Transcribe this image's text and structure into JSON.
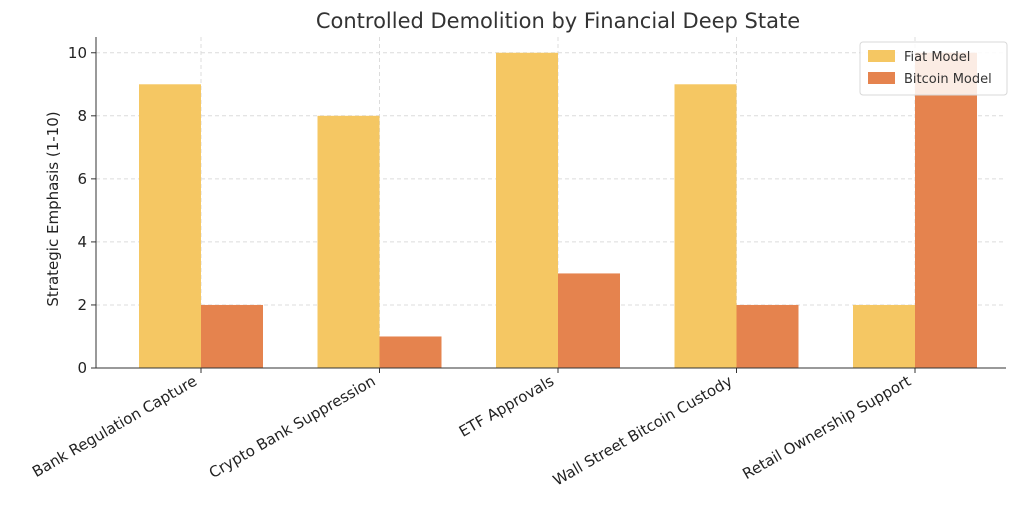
{
  "chart_data": {
    "type": "bar",
    "title": "Controlled Demolition by Financial Deep State",
    "xlabel": "",
    "ylabel": "Strategic Emphasis (1-10)",
    "categories": [
      "Bank Regulation Capture",
      "Crypto Bank Suppression",
      "ETF Approvals",
      "Wall Street Bitcoin Custody",
      "Retail Ownership Support"
    ],
    "series": [
      {
        "name": "Fiat Model",
        "values": [
          9,
          8,
          10,
          9,
          2
        ],
        "color": "#F5C763"
      },
      {
        "name": "Bitcoin Model",
        "values": [
          2,
          1,
          3,
          2,
          10
        ],
        "color": "#E5834E"
      }
    ],
    "ylim": [
      0,
      10.5
    ],
    "yticks": [
      0,
      2,
      4,
      6,
      8,
      10
    ],
    "grid": true,
    "legend_position": "top-right"
  }
}
